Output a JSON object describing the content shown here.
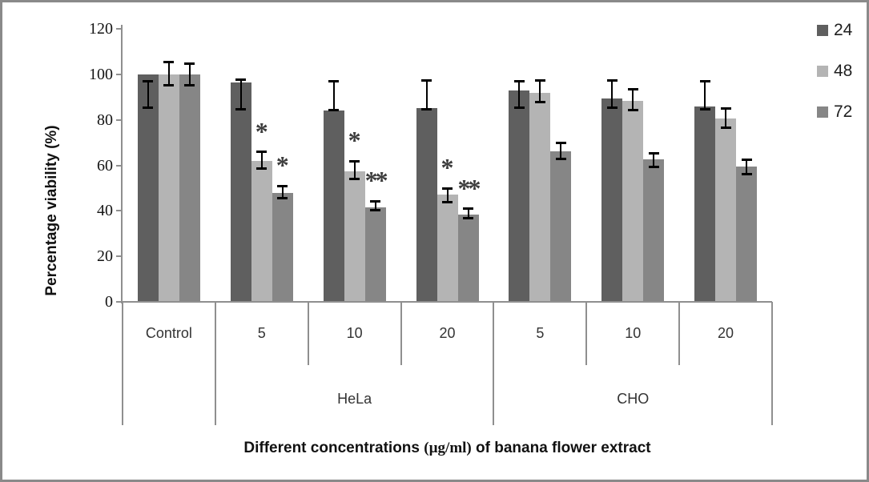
{
  "chart_data": {
    "type": "bar",
    "title": "",
    "ylabel": "Percentage viability (%)",
    "xlabel": "Different concentrations (µg/ml) of banana flower extract",
    "xlabel_parts": [
      "Different concentrations ",
      "(µg/ml)",
      " of banana flower extract"
    ],
    "ylim": [
      0,
      120
    ],
    "yticks": [
      0,
      20,
      40,
      60,
      80,
      100,
      120
    ],
    "grid": false,
    "legend_position": "right",
    "series": [
      {
        "name": "24",
        "color": "#5f5f5f"
      },
      {
        "name": "48",
        "color": "#b4b4b4"
      },
      {
        "name": "72",
        "color": "#868686"
      }
    ],
    "cells": [
      {
        "label": "Control",
        "parent": "",
        "values": [
          100,
          100,
          100
        ],
        "whiskers": [
          [
            97,
            85
          ],
          [
            105.5,
            95
          ],
          [
            105,
            95
          ]
        ],
        "sig": [
          "",
          "",
          ""
        ]
      },
      {
        "label": "5",
        "parent": "HeLa",
        "values": [
          96.5,
          62,
          48
        ],
        "whiskers": [
          [
            98,
            84.5
          ],
          [
            66,
            58.5
          ],
          [
            51,
            45.5
          ]
        ],
        "sig": [
          "",
          "*",
          "*"
        ]
      },
      {
        "label": "10",
        "parent": "HeLa",
        "values": [
          84,
          57.5,
          41.5
        ],
        "whiskers": [
          [
            97,
            84
          ],
          [
            62,
            54
          ],
          [
            44.5,
            40
          ]
        ],
        "sig": [
          "",
          "*",
          "**"
        ]
      },
      {
        "label": "20",
        "parent": "HeLa",
        "values": [
          85,
          47,
          38.5
        ],
        "whiskers": [
          [
            97.5,
            84.5
          ],
          [
            50,
            43.5
          ],
          [
            41,
            36.5
          ]
        ],
        "sig": [
          "",
          "*",
          "**"
        ]
      },
      {
        "label": "5",
        "parent": "CHO",
        "values": [
          93,
          92,
          66
        ],
        "whiskers": [
          [
            97,
            85
          ],
          [
            97.5,
            87.5
          ],
          [
            70,
            62.5
          ]
        ],
        "sig": [
          "",
          "",
          ""
        ]
      },
      {
        "label": "10",
        "parent": "CHO",
        "values": [
          89.5,
          88.5,
          62.5
        ],
        "whiskers": [
          [
            97.5,
            85
          ],
          [
            93.5,
            84
          ],
          [
            65.5,
            59
          ]
        ],
        "sig": [
          "",
          "",
          ""
        ]
      },
      {
        "label": "20",
        "parent": "CHO",
        "values": [
          86,
          80.5,
          59.5
        ],
        "whiskers": [
          [
            97,
            84.5
          ],
          [
            85,
            76.5
          ],
          [
            62.5,
            56
          ]
        ],
        "sig": [
          "",
          "",
          ""
        ]
      }
    ],
    "group_spans": [
      {
        "label": "HeLa",
        "start_cell": 1,
        "end_cell": 3
      },
      {
        "label": "CHO",
        "start_cell": 4,
        "end_cell": 6
      }
    ]
  }
}
